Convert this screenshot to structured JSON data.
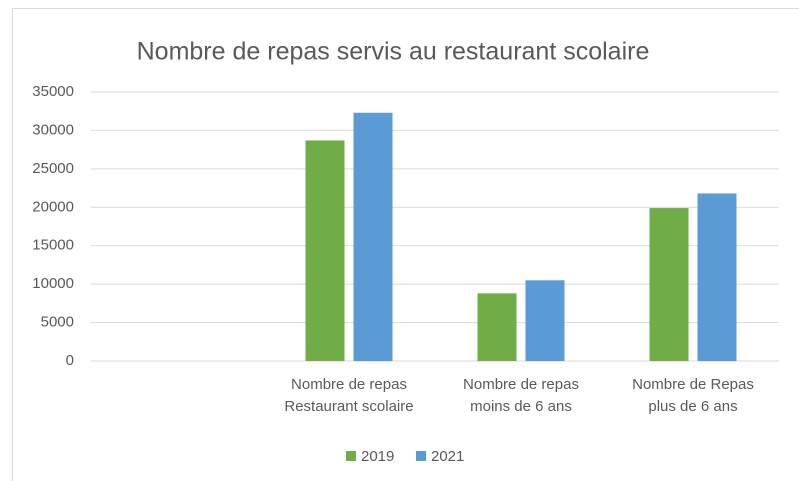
{
  "chart_data": {
    "type": "bar",
    "title": "Nombre de repas servis au restaurant scolaire",
    "categories": [
      null,
      "Nombre de repas\nRestaurant scolaire",
      "Nombre de repas\nmoins de 6 ans",
      "Nombre de Repas\nplus de 6 ans"
    ],
    "series": [
      {
        "name": "2019",
        "color": "#70ad47",
        "values": [
          null,
          28700,
          8800,
          19900
        ]
      },
      {
        "name": "2021",
        "color": "#5b9bd5",
        "values": [
          null,
          32300,
          10500,
          21800
        ]
      }
    ],
    "ylim": [
      0,
      35000
    ],
    "yticks": [
      0,
      5000,
      10000,
      15000,
      20000,
      25000,
      30000,
      35000
    ],
    "grid": true,
    "legend": "bottom"
  }
}
